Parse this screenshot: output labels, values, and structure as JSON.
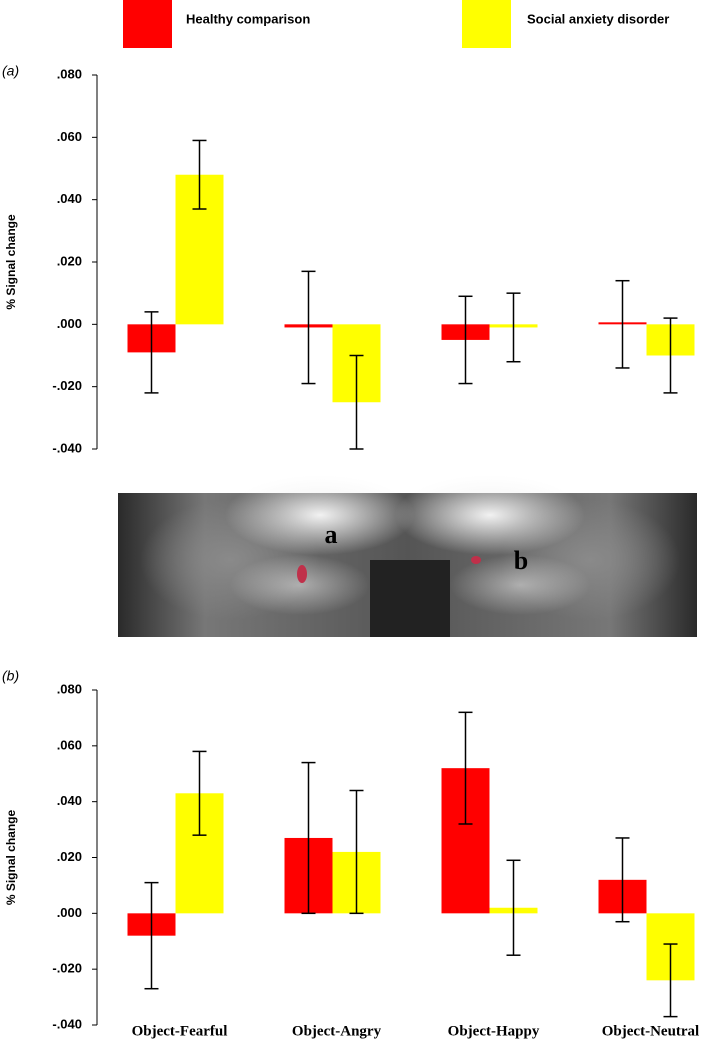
{
  "chart_data": [
    {
      "type": "bar",
      "label": "(a)",
      "y_label": "% Signal change",
      "categories": [
        null,
        null,
        null,
        null
      ],
      "series": [
        {
          "name": "Healthy comparison",
          "color": "#ff0000",
          "values": [
            -0.009,
            -0.001,
            -0.005,
            0.0
          ],
          "errors": [
            0.013,
            0.018,
            0.014,
            0.014
          ]
        },
        {
          "name": "Social anxiety disorder",
          "color": "#ffff00",
          "values": [
            0.048,
            -0.025,
            -0.001,
            -0.01
          ],
          "errors": [
            0.011,
            0.015,
            0.011,
            0.012
          ]
        }
      ],
      "ylim": [
        -0.04,
        0.08
      ],
      "yticks": [
        {
          "value": -0.04,
          "label": "-.040"
        },
        {
          "value": -0.02,
          "label": "-.020"
        },
        {
          "value": 0,
          "label": ".000"
        },
        {
          "value": 0.02,
          "label": ".020"
        },
        {
          "value": 0.04,
          "label": ".040"
        },
        {
          "value": 0.06,
          "label": ".060"
        },
        {
          "value": 0.08,
          "label": ".080"
        }
      ]
    },
    {
      "type": "bar",
      "label": "(b)",
      "y_label": "% Signal change",
      "categories": [
        "Object-Fearful",
        "Object-Angry",
        "Object-Happy",
        "Object-Neutral"
      ],
      "series": [
        {
          "color": "#ff0000",
          "values": [
            -0.008,
            0.027,
            0.052,
            0.012
          ],
          "errors": [
            0.019,
            0.027,
            0.02,
            0.015
          ]
        },
        {
          "color": "#ffff00",
          "values": [
            0.043,
            0.022,
            0.002,
            -0.024
          ],
          "errors": [
            0.015,
            0.022,
            0.017,
            0.013
          ]
        }
      ],
      "ylim": [
        -0.04,
        0.08
      ],
      "yticks": [
        {
          "value": -0.04,
          "label": "-.040"
        },
        {
          "value": -0.02,
          "label": "-.020"
        },
        {
          "value": 0,
          "label": ".000"
        },
        {
          "value": 0.02,
          "label": ".020"
        },
        {
          "value": 0.04,
          "label": ".040"
        },
        {
          "value": 0.06,
          "label": ".060"
        },
        {
          "value": 0.08,
          "label": ".080"
        }
      ]
    }
  ],
  "image_labels": [
    "a",
    "b"
  ]
}
